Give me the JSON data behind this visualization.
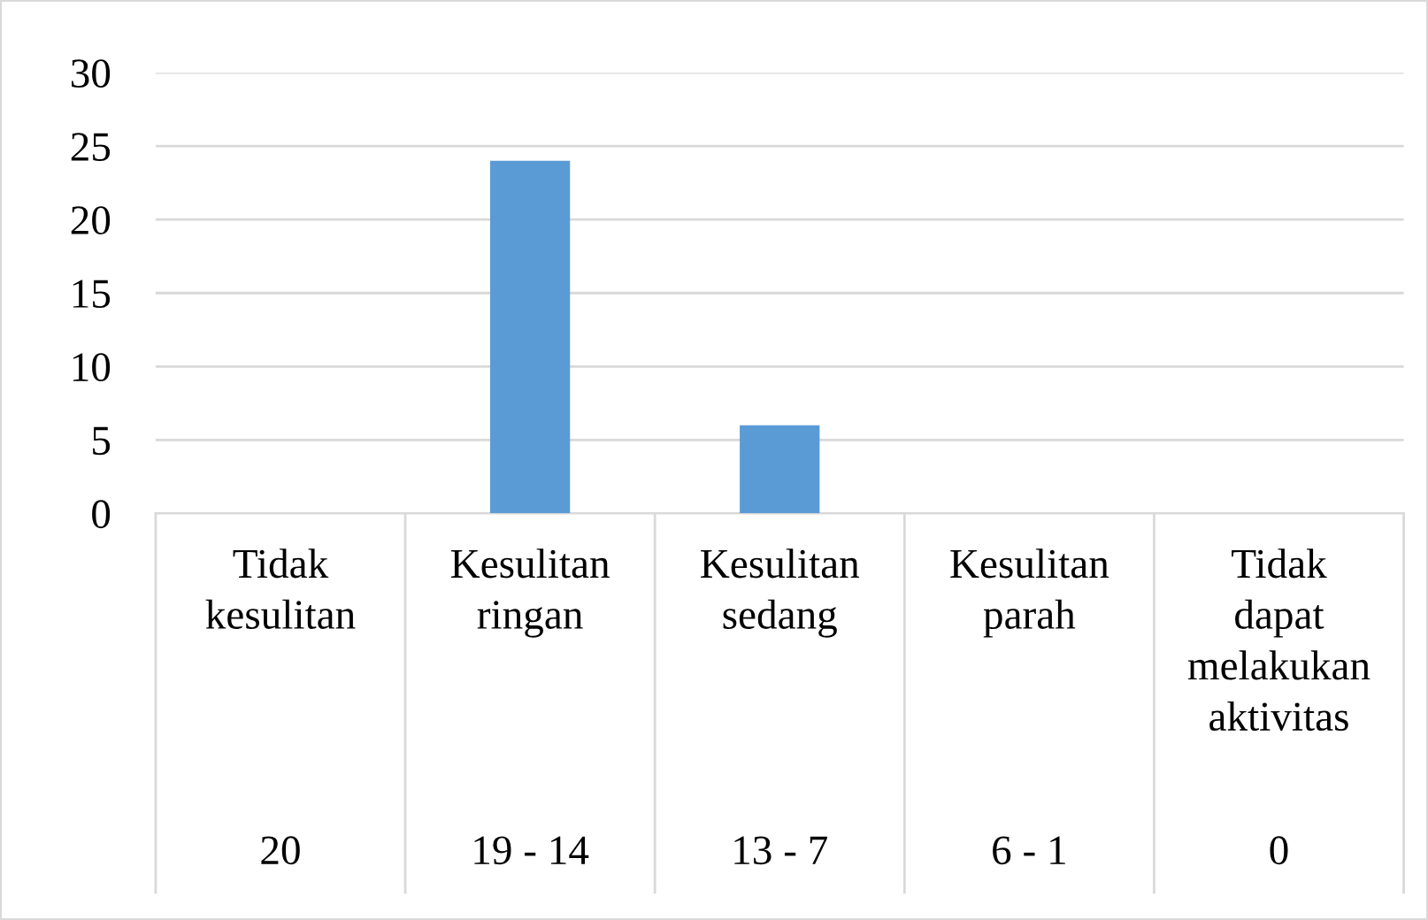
{
  "chart_data": {
    "type": "bar",
    "categories": [
      "Tidak\nkesulitan\n20",
      "Kesulitan\nringan\n19 - 14",
      "Kesulitan\nsedang\n13 - 7",
      "Kesulitan\nparah\n6 - 1",
      "Tidak\ndapat\nmelakukan\naktivitas\n0"
    ],
    "values": [
      0,
      24,
      6,
      0,
      0
    ],
    "color": "#5b9bd5",
    "ylim": [
      0,
      30
    ],
    "yticks": [
      0,
      5,
      10,
      15,
      20,
      25,
      30
    ],
    "grid": "y",
    "legend": false
  }
}
